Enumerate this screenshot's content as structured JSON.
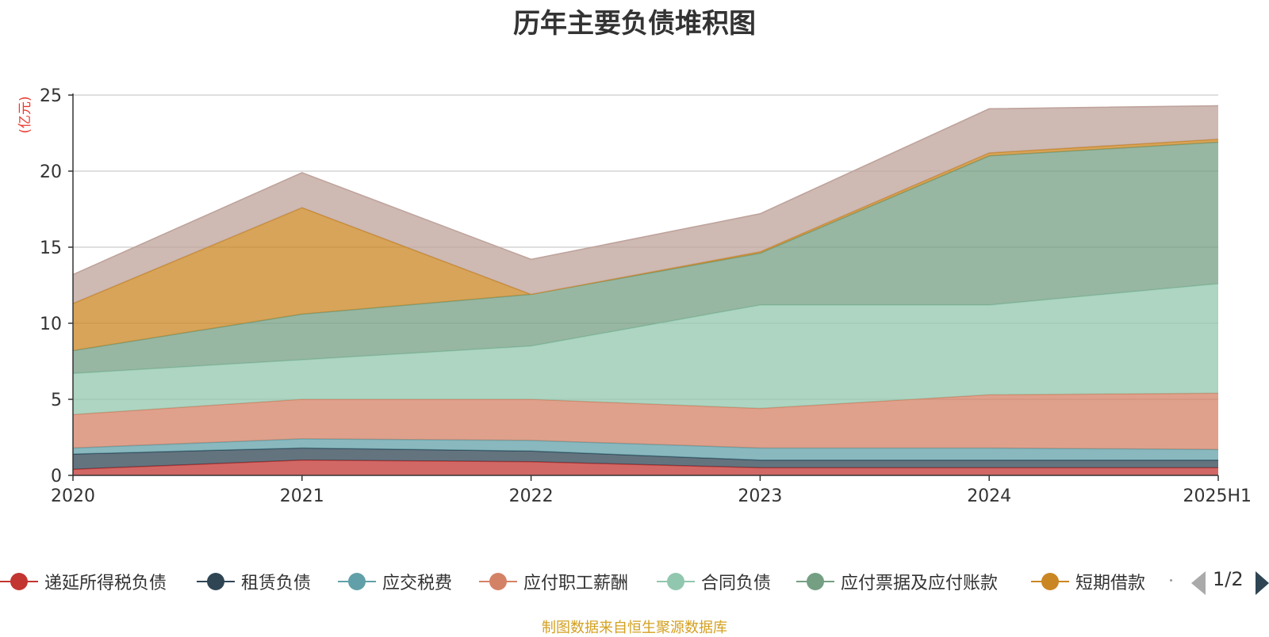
{
  "chart_data": {
    "type": "area",
    "stacked": true,
    "title": "历年主要负债堆积图",
    "ylabel": "(亿元)",
    "ylim": [
      0,
      25
    ],
    "yticks": [
      0,
      5,
      10,
      15,
      20,
      25
    ],
    "categories": [
      "2020",
      "2021",
      "2022",
      "2023",
      "2024",
      "2025H1"
    ],
    "grid": true,
    "legend_position": "bottom",
    "series": [
      {
        "name": "递延所得税负债",
        "color": "#c23531",
        "values": [
          0.4,
          1.0,
          0.9,
          0.5,
          0.5,
          0.5
        ]
      },
      {
        "name": "租赁负债",
        "color": "#2f4554",
        "values": [
          1.0,
          0.8,
          0.7,
          0.5,
          0.5,
          0.5
        ]
      },
      {
        "name": "应交税费",
        "color": "#61a0a8",
        "values": [
          0.4,
          0.6,
          0.7,
          0.8,
          0.8,
          0.7
        ]
      },
      {
        "name": "应付职工薪酬",
        "color": "#d48265",
        "values": [
          2.2,
          2.6,
          2.7,
          2.6,
          3.5,
          3.7
        ]
      },
      {
        "name": "合同负债",
        "color": "#91c7ae",
        "values": [
          2.7,
          2.6,
          3.5,
          6.8,
          5.9,
          7.2
        ]
      },
      {
        "name": "应付票据及应付账款",
        "color": "#749f83",
        "values": [
          1.5,
          3.0,
          3.4,
          3.4,
          9.8,
          9.3
        ]
      },
      {
        "name": "短期借款",
        "color": "#ca8622",
        "values": [
          3.1,
          7.0,
          0.0,
          0.1,
          0.2,
          0.2
        ]
      },
      {
        "name": "",
        "color": "#bda29a",
        "values": [
          1.9,
          2.3,
          2.3,
          2.5,
          2.9,
          2.2
        ]
      }
    ]
  },
  "legend": {
    "page_indicator": "1/2"
  },
  "source_note": "制图数据来自恒生聚源数据库"
}
